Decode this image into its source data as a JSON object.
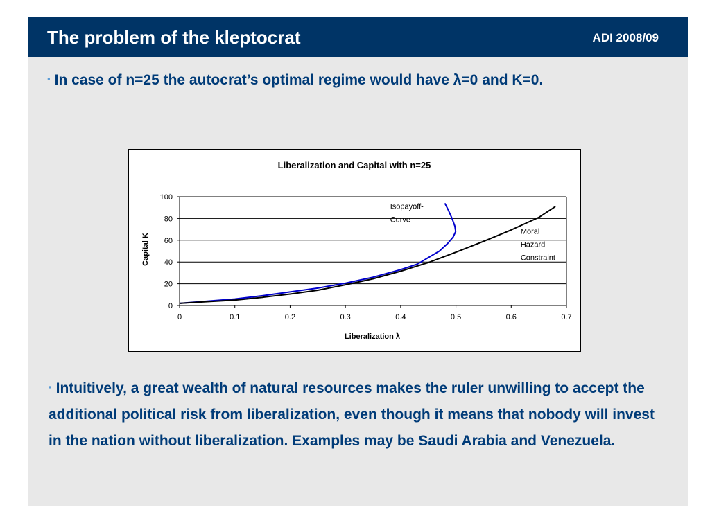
{
  "slide": {
    "title": "The problem of the kleptocrat",
    "course": "ADI 2008/09",
    "bullet_marker": "▪",
    "bullet1": "In case of n=25 the autocrat’s optimal regime would have λ=0 and K=0.",
    "bullet2": "Intuitively, a great wealth of natural resources makes the ruler unwilling to accept the additional political risk from liberalization, even though it means that nobody will invest in the nation without liberalization. Examples may be Saudi Arabia and Venezuela."
  },
  "colors": {
    "header_bg": "#003466",
    "text_blue": "#003b78",
    "isopayoff_line": "#0000cc",
    "moral_hazard_line": "#000000"
  },
  "chart_data": {
    "type": "line",
    "title": "Liberalization and Capital with n=25",
    "xlabel": "Liberalization λ",
    "ylabel": "Capital K",
    "xlim": [
      0,
      0.7
    ],
    "ylim": [
      0,
      100
    ],
    "x_ticks": [
      "0",
      "0.1",
      "0.2",
      "0.3",
      "0.4",
      "0.5",
      "0.6",
      "0.7"
    ],
    "y_ticks": [
      "0",
      "20",
      "40",
      "60",
      "80",
      "100"
    ],
    "grid": "horizontal",
    "legend": "none",
    "series": [
      {
        "name": "Isopayoff-Curve",
        "label_lines": [
          "Isopayoff-",
          "Curve"
        ],
        "color": "#0000cc",
        "points": [
          [
            0.0,
            2
          ],
          [
            0.05,
            4
          ],
          [
            0.1,
            6
          ],
          [
            0.15,
            9
          ],
          [
            0.2,
            12.5
          ],
          [
            0.25,
            16
          ],
          [
            0.3,
            20.5
          ],
          [
            0.35,
            26
          ],
          [
            0.4,
            33
          ],
          [
            0.43,
            38
          ],
          [
            0.45,
            44
          ],
          [
            0.47,
            50
          ],
          [
            0.485,
            57
          ],
          [
            0.495,
            63
          ],
          [
            0.4995,
            68
          ],
          [
            0.498,
            73
          ],
          [
            0.493,
            80
          ],
          [
            0.486,
            88
          ],
          [
            0.48,
            94
          ]
        ]
      },
      {
        "name": "Moral Hazard Constraint",
        "label_lines": [
          "Moral",
          "Hazard",
          "Constraint"
        ],
        "color": "#000000",
        "points": [
          [
            0.0,
            2
          ],
          [
            0.05,
            3.5
          ],
          [
            0.1,
            5
          ],
          [
            0.15,
            7.5
          ],
          [
            0.2,
            10.5
          ],
          [
            0.25,
            14
          ],
          [
            0.3,
            19
          ],
          [
            0.35,
            24.5
          ],
          [
            0.4,
            31.5
          ],
          [
            0.45,
            39.5
          ],
          [
            0.5,
            49
          ],
          [
            0.55,
            59
          ],
          [
            0.6,
            69.5
          ],
          [
            0.65,
            81
          ],
          [
            0.68,
            91
          ]
        ]
      }
    ]
  }
}
